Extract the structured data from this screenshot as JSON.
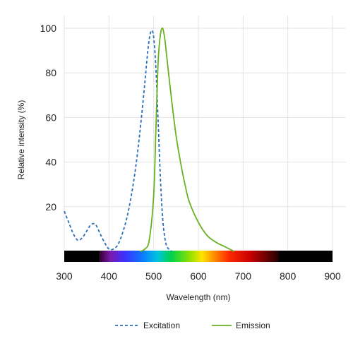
{
  "chart_data": {
    "type": "line",
    "title": "",
    "xlabel": "Wavelength (nm)",
    "ylabel": "Relative intensity (%)",
    "xlim": [
      300,
      900
    ],
    "ylim": [
      0,
      100
    ],
    "x_ticks": [
      300,
      400,
      500,
      600,
      700,
      800,
      900
    ],
    "y_ticks": [
      20,
      40,
      60,
      80,
      100
    ],
    "grid": true,
    "legend_position": "bottom",
    "spectrum_bar": {
      "range_nm": [
        300,
        900
      ],
      "visible_start_nm": 380,
      "visible_end_nm": 780
    },
    "series": [
      {
        "name": "Excitation",
        "color": "#2a6ebb",
        "style": "dashed",
        "x": [
          300,
          310,
          320,
          330,
          340,
          350,
          360,
          370,
          380,
          390,
          400,
          410,
          420,
          430,
          440,
          450,
          460,
          470,
          480,
          485,
          490,
          495,
          500,
          505,
          510,
          515,
          520,
          525,
          530,
          540
        ],
        "y": [
          18,
          13,
          8,
          5,
          6,
          9,
          12,
          12,
          8,
          4,
          1,
          1,
          3,
          8,
          15,
          25,
          38,
          55,
          75,
          86,
          95,
          99,
          96,
          82,
          58,
          33,
          15,
          6,
          2,
          0
        ]
      },
      {
        "name": "Emission",
        "color": "#6ab023",
        "style": "solid",
        "x": [
          470,
          480,
          490,
          500,
          505,
          510,
          515,
          520,
          525,
          530,
          540,
          550,
          560,
          570,
          580,
          600,
          620,
          640,
          660,
          680
        ],
        "y": [
          0,
          1,
          5,
          25,
          55,
          85,
          97,
          100,
          95,
          86,
          68,
          52,
          40,
          30,
          22,
          13,
          7,
          4,
          2,
          0
        ]
      }
    ]
  }
}
